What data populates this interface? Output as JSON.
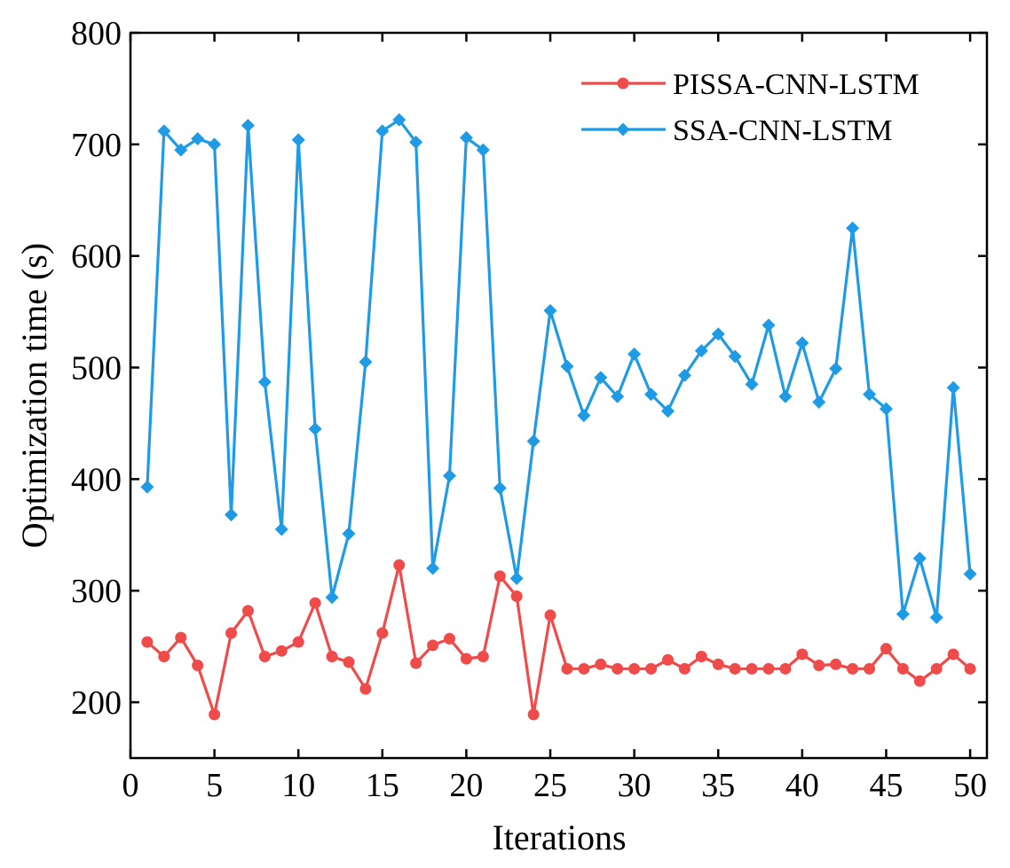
{
  "chart_data": {
    "type": "line",
    "title": "",
    "xlabel": "Iterations",
    "ylabel": "Optimization time (s)",
    "xlim": [
      0,
      51
    ],
    "ylim": [
      150,
      800
    ],
    "xticks": [
      0,
      5,
      10,
      15,
      20,
      25,
      30,
      35,
      40,
      45,
      50
    ],
    "yticks": [
      200,
      300,
      400,
      500,
      600,
      700,
      800
    ],
    "grid": false,
    "legend_position": "top-right",
    "x": [
      1,
      2,
      3,
      4,
      5,
      6,
      7,
      8,
      9,
      10,
      11,
      12,
      13,
      14,
      15,
      16,
      17,
      18,
      19,
      20,
      21,
      22,
      23,
      24,
      25,
      26,
      27,
      28,
      29,
      30,
      31,
      32,
      33,
      34,
      35,
      36,
      37,
      38,
      39,
      40,
      41,
      42,
      43,
      44,
      45,
      46,
      47,
      48,
      49,
      50
    ],
    "series": [
      {
        "name": "PISSA-CNN-LSTM",
        "color": "#f04b4b",
        "marker": "circle",
        "values": [
          254,
          241,
          258,
          233,
          189,
          262,
          282,
          241,
          246,
          254,
          289,
          241,
          236,
          212,
          262,
          323,
          235,
          251,
          257,
          239,
          241,
          313,
          295,
          189,
          278,
          230,
          230,
          234,
          230,
          230,
          230,
          238,
          230,
          241,
          234,
          230,
          230,
          230,
          230,
          243,
          233,
          234,
          230,
          230,
          248,
          230,
          219,
          230,
          243,
          230
        ]
      },
      {
        "name": "SSA-CNN-LSTM",
        "color": "#1f9be6",
        "marker": "diamond",
        "values": [
          393,
          712,
          695,
          705,
          700,
          368,
          717,
          487,
          355,
          704,
          445,
          294,
          351,
          505,
          712,
          722,
          702,
          320,
          403,
          706,
          695,
          392,
          311,
          434,
          551,
          501,
          457,
          491,
          474,
          512,
          476,
          461,
          493,
          515,
          530,
          510,
          485,
          538,
          474,
          522,
          469,
          499,
          625,
          476,
          463,
          279,
          329,
          276,
          482,
          315
        ]
      }
    ]
  }
}
